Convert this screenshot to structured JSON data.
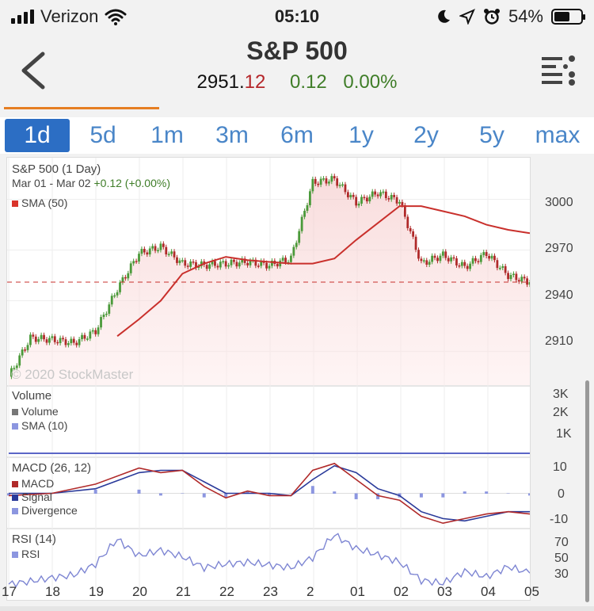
{
  "status": {
    "carrier": "Verizon",
    "time": "05:10",
    "battery": "54%"
  },
  "header": {
    "title": "S&P 500",
    "price_main": "2951.",
    "price_dec": "12",
    "change": "0.12",
    "change_pct": "0.00%",
    "colors": {
      "down": "#b5262a",
      "up": "#3f7d28",
      "accent": "#e67e22"
    }
  },
  "ranges": [
    "1d",
    "5d",
    "1m",
    "3m",
    "6m",
    "1y",
    "2y",
    "5y",
    "max"
  ],
  "active_range": "1d",
  "chart": {
    "title": "S&P 500 (1 Day)",
    "date_range": "Mar 01 - Mar 02",
    "change": "+0.12 (+0.00%)",
    "sma_label": "SMA (50)",
    "watermark": "© 2020 StockMaster",
    "price_ticks": [
      "3000",
      "2970",
      "2940",
      "2910"
    ],
    "volume_title": "Volume",
    "volume_legend": [
      "Volume",
      "SMA (10)"
    ],
    "volume_ticks": [
      "3K",
      "2K",
      "1K"
    ],
    "macd_title": "MACD (26, 12)",
    "macd_legend": [
      "MACD",
      "Signal",
      "Divergence"
    ],
    "macd_ticks": [
      "10",
      "0",
      "-10"
    ],
    "rsi_title": "RSI (14)",
    "rsi_legend": [
      "RSI"
    ],
    "rsi_ticks": [
      "70",
      "50",
      "30"
    ],
    "x_ticks": [
      "17",
      "18",
      "19",
      "20",
      "21",
      "22",
      "23",
      "2",
      "01",
      "02",
      "03",
      "04",
      "05"
    ]
  },
  "chart_data": {
    "type": "line",
    "series": [
      {
        "name": "S&P 500",
        "x": [
          0,
          1,
          2,
          3,
          4,
          5,
          6,
          7,
          8,
          9,
          10,
          11,
          12,
          13,
          14,
          15,
          16,
          17,
          18,
          19,
          20,
          21,
          22,
          23,
          24
        ],
        "y": [
          2895,
          2918,
          2917,
          2915,
          2922,
          2947,
          2968,
          2972,
          2962,
          2961,
          2962,
          2963,
          2961,
          2965,
          3010,
          3012,
          2998,
          3004,
          2999,
          2962,
          2967,
          2960,
          2968,
          2955,
          2951
        ]
      },
      {
        "name": "SMA (50)",
        "x": [
          5,
          6,
          7,
          8,
          9,
          10,
          11,
          12,
          13,
          14,
          15,
          16,
          17,
          18,
          19,
          20,
          21,
          22,
          23,
          24
        ],
        "y": [
          2919,
          2929,
          2940,
          2956,
          2962,
          2966,
          2964,
          2963,
          2962,
          2962,
          2965,
          2976,
          2986,
          2996,
          2996,
          2993,
          2990,
          2985,
          2982,
          2980
        ]
      },
      {
        "name": "MACD",
        "x": [
          0,
          2,
          4,
          6,
          7,
          8,
          9,
          10,
          11,
          12,
          13,
          14,
          15,
          16,
          17,
          18,
          19,
          20,
          21,
          22,
          23,
          24
        ],
        "y": [
          -1,
          0,
          4,
          11,
          9,
          10,
          3,
          -2,
          1,
          -1,
          -1,
          10,
          13,
          6,
          -1,
          -3,
          -10,
          -13,
          -11,
          -9,
          -8,
          -9
        ]
      },
      {
        "name": "Signal",
        "x": [
          0,
          2,
          4,
          6,
          7,
          8,
          9,
          10,
          11,
          12,
          13,
          14,
          15,
          16,
          17,
          18,
          19,
          20,
          21,
          22,
          23,
          24
        ],
        "y": [
          0,
          0,
          2,
          9,
          10,
          10,
          5,
          0,
          0,
          0,
          -1,
          6,
          12,
          9,
          2,
          -1,
          -8,
          -11,
          -12,
          -10,
          -8,
          -8
        ]
      },
      {
        "name": "RSI",
        "x": [
          0,
          1,
          2,
          3,
          4,
          5,
          6,
          7,
          8,
          9,
          10,
          11,
          12,
          13,
          14,
          15,
          16,
          17,
          18,
          19,
          20,
          21,
          22,
          23,
          24
        ],
        "y": [
          26,
          29,
          33,
          36,
          48,
          75,
          57,
          63,
          56,
          44,
          48,
          50,
          47,
          44,
          55,
          80,
          65,
          58,
          50,
          30,
          27,
          40,
          34,
          45,
          38
        ]
      }
    ]
  }
}
